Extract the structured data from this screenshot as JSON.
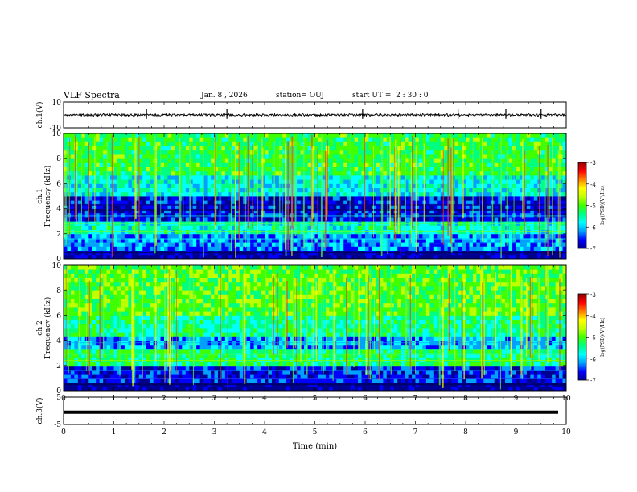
{
  "header": {
    "title": "VLF Spectra",
    "date": "Jan. 8 , 2026",
    "station": "station= OUJ",
    "start_time": "start UT =  2 : 30 : 0"
  },
  "chart_data": [
    {
      "type": "line",
      "name": "ch1-waveform",
      "ylabel": "ch.1(V)",
      "ylim": [
        -10,
        10
      ],
      "yticks": [
        "10",
        "-10"
      ],
      "xlim": [
        0,
        10
      ]
    },
    {
      "type": "heatmap",
      "name": "ch1-spectrogram",
      "ylabel_channel": "ch.1",
      "ylabel": "Frequency  (kHz)",
      "ylim": [
        0,
        10
      ],
      "yticks": [
        "0",
        "2",
        "4",
        "6",
        "8",
        "10"
      ],
      "xlim": [
        0,
        10
      ],
      "colorbar": {
        "label": "log(PSD)(V²/Hz)",
        "range": [
          -7,
          -3
        ],
        "ticks": [
          "-3",
          "-4",
          "-5",
          "-6",
          "-7"
        ]
      }
    },
    {
      "type": "heatmap",
      "name": "ch2-spectrogram",
      "ylabel_channel": "ch.2",
      "ylabel": "Frequency  (kHz)",
      "ylim": [
        0,
        10
      ],
      "yticks": [
        "0",
        "2",
        "4",
        "6",
        "8",
        "10"
      ],
      "xlim": [
        0,
        10
      ],
      "colorbar": {
        "label": "log(PSD)(V²/Hz)",
        "range": [
          -7,
          -3
        ],
        "ticks": [
          "-3",
          "-4",
          "-5",
          "-6",
          "-7"
        ]
      }
    },
    {
      "type": "line",
      "name": "ch3-waveform",
      "ylabel": "ch.3(V)",
      "ylim": [
        -5,
        5
      ],
      "yticks": [
        "5",
        "-5"
      ],
      "value": -0.5,
      "xlim": [
        0,
        10
      ]
    }
  ],
  "xaxis": {
    "label": "Time  (min)",
    "ticks": [
      "0",
      "1",
      "2",
      "3",
      "4",
      "5",
      "6",
      "7",
      "8",
      "9",
      "10"
    ]
  },
  "colors": {
    "colormap": [
      "#000090",
      "#0000ff",
      "#00a0ff",
      "#00ffff",
      "#00ff80",
      "#40ff00",
      "#c0ff00",
      "#ffff00",
      "#ff8000",
      "#ff0000",
      "#900000"
    ]
  }
}
